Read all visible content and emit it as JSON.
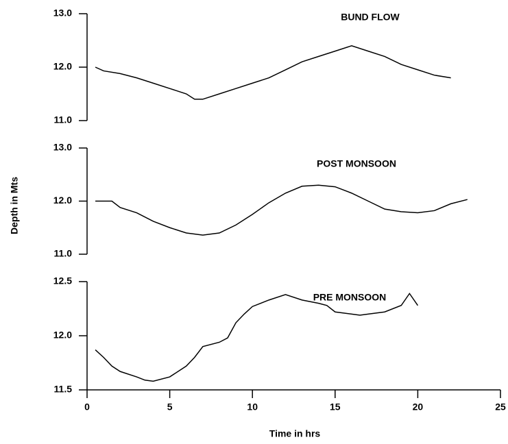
{
  "chart_data": [
    {
      "type": "line",
      "title": "BUND FLOW",
      "x": [
        0.5,
        1,
        2,
        3,
        4,
        5,
        6,
        6.5,
        7,
        8,
        9,
        10,
        11,
        12,
        13,
        14,
        15,
        16,
        17,
        18,
        19,
        20,
        21,
        22
      ],
      "values": [
        12.0,
        11.93,
        11.88,
        11.8,
        11.7,
        11.6,
        11.5,
        11.4,
        11.4,
        11.5,
        11.6,
        11.7,
        11.8,
        11.95,
        12.1,
        12.2,
        12.3,
        12.4,
        12.3,
        12.2,
        12.05,
        11.95,
        11.85,
        11.8
      ],
      "color": "#000000",
      "ylim": [
        11,
        13
      ],
      "yticks": [
        {
          "value": 11,
          "label": "11.0"
        },
        {
          "value": 12,
          "label": "12.0"
        },
        {
          "value": 13,
          "label": "13.0"
        }
      ]
    },
    {
      "type": "line",
      "title": "POST MONSOON",
      "ylabel": "Depth in Mts",
      "x": [
        0.5,
        1,
        1.5,
        2,
        3,
        4,
        5,
        6,
        7,
        8,
        9,
        10,
        11,
        12,
        13,
        14,
        15,
        16,
        17,
        18,
        19,
        20,
        21,
        22,
        23
      ],
      "values": [
        12.0,
        12.0,
        12.0,
        11.88,
        11.78,
        11.62,
        11.5,
        11.4,
        11.36,
        11.4,
        11.55,
        11.75,
        11.97,
        12.15,
        12.28,
        12.3,
        12.27,
        12.15,
        12.0,
        11.85,
        11.8,
        11.78,
        11.82,
        11.95,
        12.03
      ],
      "color": "#000000",
      "ylim": [
        11,
        13
      ],
      "yticks": [
        {
          "value": 11,
          "label": "11.0"
        },
        {
          "value": 12,
          "label": "12.0"
        },
        {
          "value": 13,
          "label": "13.0"
        }
      ]
    },
    {
      "type": "line",
      "title": "PRE MONSOON",
      "xlabel": "Time in hrs",
      "x": [
        0.5,
        1,
        1.5,
        2,
        3,
        3.5,
        4,
        5,
        6,
        6.5,
        7,
        8,
        8.5,
        9,
        9.5,
        10,
        11,
        12,
        13,
        14,
        14.5,
        15,
        16,
        16.5,
        17,
        18,
        19,
        19.5,
        20
      ],
      "values": [
        11.87,
        11.8,
        11.72,
        11.67,
        11.62,
        11.59,
        11.58,
        11.62,
        11.72,
        11.8,
        11.9,
        11.94,
        11.98,
        12.12,
        12.2,
        12.27,
        12.33,
        12.38,
        12.33,
        12.3,
        12.28,
        12.22,
        12.2,
        12.19,
        12.2,
        12.22,
        12.28,
        12.39,
        12.28
      ],
      "color": "#000000",
      "ylim": [
        11.5,
        12.5
      ],
      "yticks": [
        {
          "value": 11.5,
          "label": "11.5"
        },
        {
          "value": 12,
          "label": "12.0"
        },
        {
          "value": 12.5,
          "label": "12.5"
        }
      ],
      "xlim": [
        0,
        25
      ],
      "xticks": [
        0,
        5,
        10,
        15,
        20,
        25
      ]
    }
  ]
}
